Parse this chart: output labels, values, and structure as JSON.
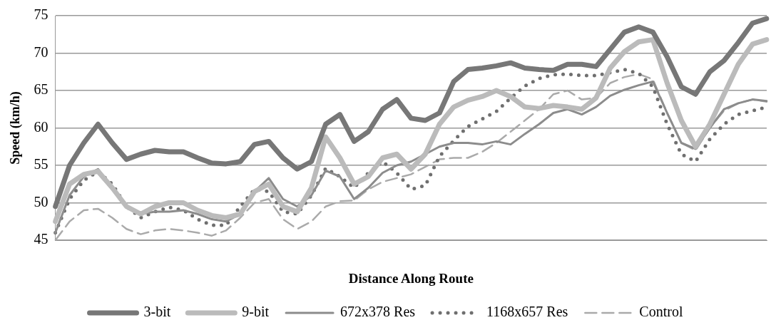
{
  "chart_data": {
    "type": "line",
    "xlabel": "Distance Along Route",
    "ylabel": "Speed (km/h)",
    "categories": [
      null,
      null,
      null,
      null,
      null,
      null,
      null,
      null,
      null,
      null,
      null,
      null,
      null,
      null,
      null,
      null,
      null,
      null,
      null,
      null,
      null,
      null,
      null,
      null,
      null,
      null,
      null,
      null,
      null,
      null,
      null,
      null,
      null,
      null,
      null,
      null,
      null,
      null,
      null,
      null,
      null,
      null,
      null,
      null,
      null,
      null,
      null,
      null,
      null,
      null,
      null
    ],
    "series": [
      {
        "name": "3-bit",
        "color": "#777777",
        "line_style": "solid",
        "values": [
          49.5,
          55,
          58,
          60.5,
          58,
          55.8,
          56.5,
          57,
          56.8,
          56.8,
          56,
          55.3,
          55.2,
          55.5,
          57.8,
          58.2,
          56,
          54.5,
          55.5,
          60.5,
          61.8,
          58.2,
          59.5,
          62.5,
          63.8,
          61.3,
          61,
          62,
          66.2,
          67.8,
          68,
          68.3,
          68.7,
          68,
          67.8,
          67.7,
          68.5,
          68.5,
          68.2,
          70.5,
          72.8,
          73.5,
          72.8,
          69.5,
          65.5,
          64.5,
          67.5,
          69,
          71.4,
          74,
          74.6
        ]
      },
      {
        "name": "9-bit",
        "color": "#bbbbbb",
        "line_style": "solid",
        "values": [
          47.5,
          52.5,
          53.8,
          54.2,
          52,
          49.5,
          48.5,
          49.5,
          50,
          50,
          49,
          48.3,
          48,
          48.5,
          51.5,
          52.5,
          49.5,
          48.8,
          52,
          58.8,
          56,
          52.5,
          53.5,
          56,
          56.5,
          54.5,
          56.5,
          60.5,
          62.8,
          63.7,
          64.2,
          65,
          64.2,
          62.8,
          62.6,
          63,
          62.8,
          62.5,
          64,
          68,
          70.2,
          71.5,
          71.8,
          66,
          61,
          57.5,
          60.5,
          64.5,
          68.5,
          71.2,
          71.8
        ]
      },
      {
        "name": "672x378 Res",
        "color": "#8c8c8c",
        "line_style": "solid",
        "values": [
          46,
          51,
          53.5,
          54.5,
          52,
          49.5,
          48.5,
          48.8,
          48.8,
          49,
          48.5,
          47.8,
          47.5,
          48.5,
          51.5,
          53.3,
          50.5,
          49.5,
          51,
          54.3,
          53.5,
          50.5,
          52,
          54,
          55,
          55.5,
          56.5,
          57.5,
          58,
          58,
          57.8,
          58.2,
          57.8,
          59.2,
          60.5,
          62,
          62.5,
          61.8,
          62.8,
          64.3,
          65.1,
          65.7,
          66.2,
          62,
          58,
          57.2,
          60,
          62.5,
          63.3,
          63.8,
          63.6
        ]
      },
      {
        "name": "1168x657 Res",
        "color": "#6f6f6f",
        "line_style": "dotted",
        "values": [
          46,
          50.5,
          53,
          54.2,
          52.5,
          49.5,
          48,
          48.8,
          49.4,
          49,
          47.8,
          47,
          47,
          49.5,
          51.8,
          51.5,
          48.8,
          48.5,
          51,
          54.6,
          53.5,
          52,
          54,
          55.5,
          54,
          51.8,
          52.3,
          56.2,
          58.3,
          60.2,
          61.2,
          62.2,
          64,
          65.6,
          66.6,
          67.1,
          67.2,
          67,
          67,
          67.4,
          67.8,
          67.3,
          65.5,
          60.5,
          56.5,
          55.5,
          58.5,
          60.5,
          61.8,
          62.3,
          62.8
        ]
      },
      {
        "name": "Control",
        "color": "#aaaaaa",
        "line_style": "dashed",
        "values": [
          45,
          47.5,
          49,
          49.2,
          48,
          46.5,
          45.8,
          46.3,
          46.5,
          46.3,
          46,
          45.6,
          46.3,
          48,
          50,
          50.5,
          47.8,
          46.5,
          47.5,
          49.5,
          50.2,
          50.3,
          51.8,
          52.8,
          53.3,
          53.8,
          54.8,
          55.8,
          56,
          56,
          56.8,
          58,
          59.5,
          61,
          62.5,
          64.5,
          65,
          63.8,
          64,
          66,
          66.8,
          67.2,
          66.5,
          62,
          58,
          57,
          60,
          62.3,
          63.3,
          63.8,
          63.5
        ]
      }
    ],
    "ylim": [
      45,
      75
    ],
    "yticks": [
      45,
      50,
      55,
      60,
      65,
      70,
      75
    ],
    "grid": "y",
    "legend": "bottom",
    "marker": "none"
  }
}
